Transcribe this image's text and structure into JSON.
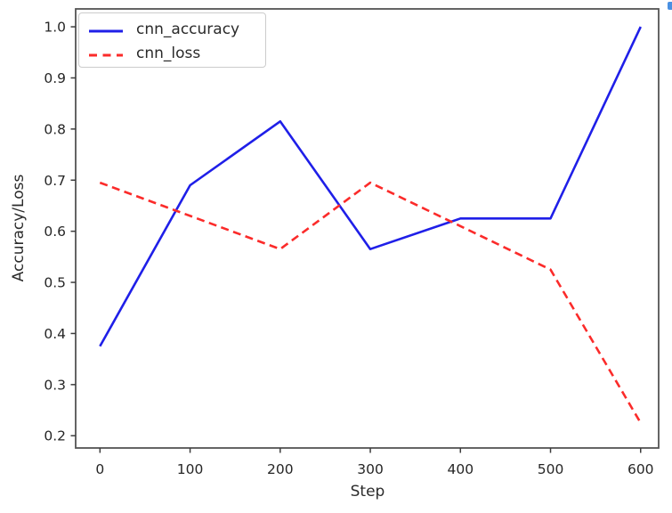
{
  "chart_data": {
    "type": "line",
    "title": "",
    "xlabel": "Step",
    "ylabel": "Accuracy/Loss",
    "x": [
      0,
      100,
      200,
      300,
      400,
      500,
      600
    ],
    "series": [
      {
        "name": "cnn_accuracy",
        "color": "#1f1fe8",
        "line_style": "solid",
        "values": [
          0.375,
          0.69,
          0.815,
          0.565,
          0.625,
          0.625,
          1.0
        ]
      },
      {
        "name": "cnn_loss",
        "color": "#fb2b2a",
        "line_style": "dashed",
        "values": [
          0.695,
          0.63,
          0.565,
          0.695,
          0.61,
          0.525,
          0.225
        ]
      }
    ],
    "x_ticks": [
      0,
      100,
      200,
      300,
      400,
      500,
      600
    ],
    "y_ticks": [
      0.2,
      0.3,
      0.4,
      0.5,
      0.6,
      0.7,
      0.8,
      0.9,
      1.0
    ],
    "xlim": [
      -27,
      620
    ],
    "ylim": [
      0.176,
      1.035
    ],
    "grid": false,
    "legend": {
      "position": "upper-left"
    }
  },
  "colors": {
    "background": "#ffffff",
    "spine": "#545454",
    "tick": "#3d3d3d",
    "text": "#262626",
    "legend_border": "#cccccc",
    "edge_artifact": "#4a90e2"
  }
}
